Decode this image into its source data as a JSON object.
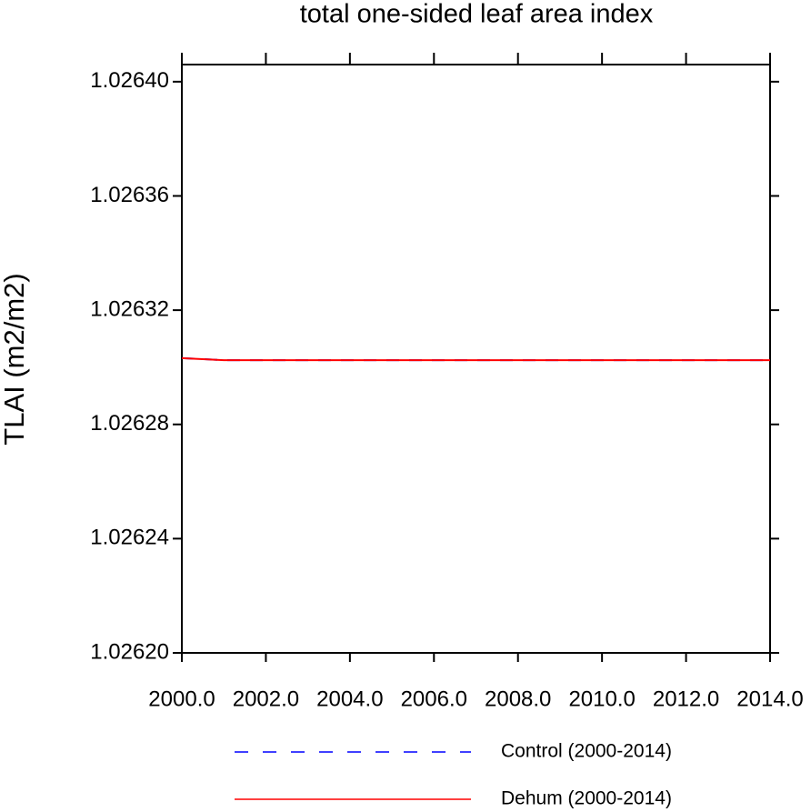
{
  "chart_data": {
    "type": "line",
    "title": "total one-sided leaf area index",
    "y_label": "TLAI  (m2/m2)",
    "x": [
      2000,
      2001,
      2002,
      2003,
      2004,
      2005,
      2006,
      2007,
      2008,
      2009,
      2010,
      2011,
      2012,
      2013,
      2014
    ],
    "series": [
      {
        "name": "Control (2000-2014)",
        "color": "#0000ff",
        "dash": true,
        "values": [
          1.0263032,
          1.0263025,
          1.0263025,
          1.0263025,
          1.0263025,
          1.0263025,
          1.0263025,
          1.0263025,
          1.0263025,
          1.0263025,
          1.0263025,
          1.0263025,
          1.0263025,
          1.0263025,
          1.0263025
        ]
      },
      {
        "name": "Dehum (2000-2014)",
        "color": "#ff0000",
        "dash": false,
        "values": [
          1.0263032,
          1.0263025,
          1.0263025,
          1.0263025,
          1.0263025,
          1.0263025,
          1.0263025,
          1.0263025,
          1.0263025,
          1.0263025,
          1.0263025,
          1.0263025,
          1.0263025,
          1.0263025,
          1.0263025
        ]
      }
    ],
    "xlim": [
      2000,
      2014
    ],
    "xticks": [
      {
        "value": 2000,
        "label": "2000.0"
      },
      {
        "value": 2002,
        "label": "2002.0"
      },
      {
        "value": 2004,
        "label": "2004.0"
      },
      {
        "value": 2006,
        "label": "2006.0"
      },
      {
        "value": 2008,
        "label": "2008.0"
      },
      {
        "value": 2010,
        "label": "2010.0"
      },
      {
        "value": 2012,
        "label": "2012.0"
      },
      {
        "value": 2014,
        "label": "2014.0"
      }
    ],
    "ylim": [
      1.0262,
      1.026406
    ],
    "yticks": [
      {
        "value": 1.0262,
        "label": "1.02620"
      },
      {
        "value": 1.02624,
        "label": "1.02624"
      },
      {
        "value": 1.02628,
        "label": "1.02628"
      },
      {
        "value": 1.02632,
        "label": "1.02632"
      },
      {
        "value": 1.02636,
        "label": "1.02636"
      },
      {
        "value": 1.0264,
        "label": "1.02640"
      }
    ],
    "grid": false
  }
}
